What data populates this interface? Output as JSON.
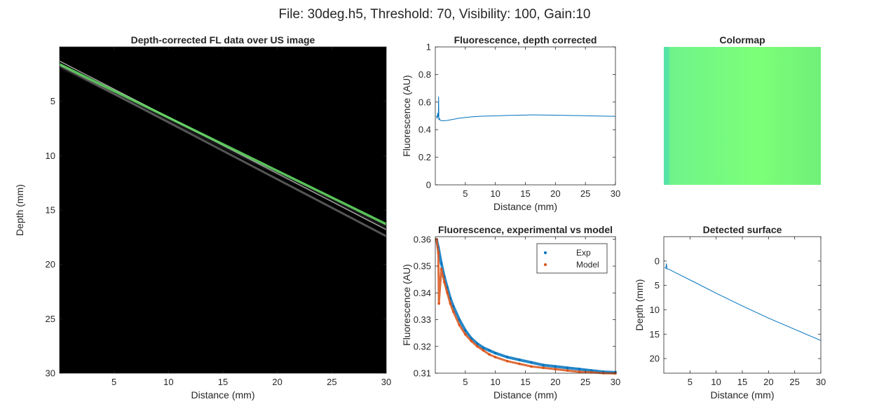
{
  "figure": {
    "suptitle": "File: 30deg.h5, Threshold: 70, Visibility: 100, Gain:10"
  },
  "chart_data": [
    {
      "id": "us",
      "type": "heatmap",
      "title": "Depth-corrected FL data over US image",
      "xlabel": "Distance (mm)",
      "ylabel": "Depth (mm)",
      "xlim": [
        0,
        30
      ],
      "ylim": [
        0,
        30
      ],
      "y_reversed": true,
      "xticks": [
        5,
        10,
        15,
        20,
        25,
        30
      ],
      "yticks": [
        5,
        10,
        15,
        20,
        25,
        30
      ],
      "background": "#000000",
      "bands": [
        {
          "name": "",
          "x": [
            0,
            30
          ],
          "y": [
            1.7,
            17.4
          ],
          "color": "#9a9a9a"
        },
        {
          "name": "",
          "x": [
            0,
            30
          ],
          "y": [
            1.3,
            16.8
          ],
          "color": "#c8c8c8"
        },
        {
          "name": "",
          "x": [
            0,
            30
          ],
          "y": [
            1.6,
            16.3
          ],
          "color": "#66ee66"
        }
      ]
    },
    {
      "id": "flcorr",
      "type": "line",
      "title": "Fluorescence, depth corrected",
      "xlabel": "Distance (mm)",
      "ylabel": "Fluorescence (AU)",
      "xlim": [
        0,
        30
      ],
      "ylim": [
        0,
        1
      ],
      "xticks": [
        5,
        10,
        15,
        20,
        25,
        30
      ],
      "yticks": [
        0,
        0.2,
        0.4,
        0.6,
        0.8,
        1
      ],
      "series": [
        {
          "name": "",
          "color": "#0072bd",
          "x": [
            0.2,
            0.3,
            0.4,
            0.5,
            0.55,
            0.6,
            0.7,
            0.8,
            1,
            1.5,
            2,
            3,
            4,
            6,
            8,
            10,
            12,
            14,
            16,
            18,
            20,
            22,
            24,
            26,
            28,
            30
          ],
          "y": [
            0.5,
            0.48,
            0.52,
            0.49,
            0.64,
            0.47,
            0.48,
            0.47,
            0.465,
            0.465,
            0.467,
            0.475,
            0.483,
            0.493,
            0.498,
            0.5,
            0.503,
            0.505,
            0.507,
            0.506,
            0.505,
            0.503,
            0.502,
            0.5,
            0.498,
            0.497
          ]
        }
      ]
    },
    {
      "id": "colormap",
      "type": "heatmap",
      "title": "Colormap",
      "colors": [
        "#54e0a8",
        "#70f48a",
        "#7cff78",
        "#70f078"
      ]
    },
    {
      "id": "expmodel",
      "type": "scatter",
      "title": "Fluorescence, experimental vs model",
      "xlabel": "Distance (mm)",
      "ylabel": "Fluorescence (AU)",
      "xlim": [
        0,
        30
      ],
      "ylim": [
        0.31,
        0.361
      ],
      "xticks": [
        5,
        10,
        15,
        20,
        25,
        30
      ],
      "yticks": [
        0.31,
        0.32,
        0.33,
        0.34,
        0.35,
        0.36
      ],
      "legend": "top-right",
      "series": [
        {
          "name": "Exp",
          "color": "#0072bd",
          "x": [
            0.2,
            0.5,
            1,
            1.5,
            2,
            2.5,
            3,
            4,
            5,
            6,
            7,
            8,
            9,
            10,
            12,
            14,
            16,
            18,
            20,
            22,
            24,
            26,
            28,
            30
          ],
          "y": [
            0.36,
            0.357,
            0.351,
            0.346,
            0.342,
            0.338,
            0.335,
            0.33,
            0.326,
            0.323,
            0.321,
            0.3195,
            0.3185,
            0.3175,
            0.316,
            0.315,
            0.314,
            0.313,
            0.3125,
            0.312,
            0.3115,
            0.311,
            0.3105,
            0.3103
          ]
        },
        {
          "name": "Model",
          "color": "#d95319",
          "x": [
            0.2,
            0.5,
            0.6,
            1,
            1.5,
            2,
            2.5,
            3,
            4,
            5,
            6,
            7,
            8,
            9,
            10,
            12,
            14,
            16,
            18,
            20,
            22,
            24,
            26,
            28,
            30
          ],
          "y": [
            0.36,
            0.355,
            0.336,
            0.349,
            0.344,
            0.34,
            0.336,
            0.333,
            0.328,
            0.3245,
            0.322,
            0.32,
            0.3185,
            0.317,
            0.316,
            0.3145,
            0.3135,
            0.3125,
            0.312,
            0.3115,
            0.311,
            0.3105,
            0.3103,
            0.31,
            0.3099
          ]
        }
      ]
    },
    {
      "id": "surface",
      "type": "line",
      "title": "Detected surface",
      "xlabel": "Distance (mm)",
      "ylabel": "Depth (mm)",
      "xlim": [
        0,
        30
      ],
      "ylim": [
        -5,
        23
      ],
      "y_reversed": true,
      "xticks": [
        5,
        10,
        15,
        20,
        25,
        30
      ],
      "yticks": [
        0,
        5,
        10,
        15,
        20
      ],
      "series": [
        {
          "name": "",
          "color": "#0072bd",
          "x": [
            0.2,
            0.4,
            0.5,
            0.6,
            1,
            3,
            6,
            10,
            15,
            20,
            25,
            30
          ],
          "y": [
            1.3,
            1.5,
            0.5,
            1.6,
            1.7,
            2.8,
            4.4,
            6.6,
            9.2,
            11.7,
            14.0,
            16.3
          ]
        }
      ]
    }
  ]
}
